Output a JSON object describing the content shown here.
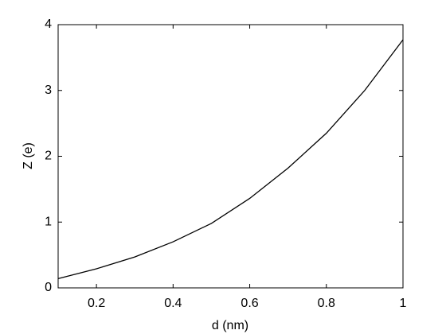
{
  "chart_data": {
    "type": "line",
    "xlabel": "d (nm)",
    "ylabel": "Z (e)",
    "x": [
      0.1,
      0.2,
      0.3,
      0.4,
      0.5,
      0.6,
      0.7,
      0.8,
      0.9,
      1.0
    ],
    "series": [
      {
        "color": "#000000",
        "values": [
          0.14,
          0.29,
          0.47,
          0.7,
          0.98,
          1.36,
          1.82,
          2.35,
          3.0,
          3.77
        ]
      }
    ],
    "xlim": [
      0.1,
      1
    ],
    "xticks": [
      0.2,
      0.4,
      0.6,
      0.8,
      1
    ],
    "ylim": [
      0,
      4
    ],
    "yticks": [
      0,
      1,
      2,
      3,
      4
    ],
    "grid": false
  }
}
